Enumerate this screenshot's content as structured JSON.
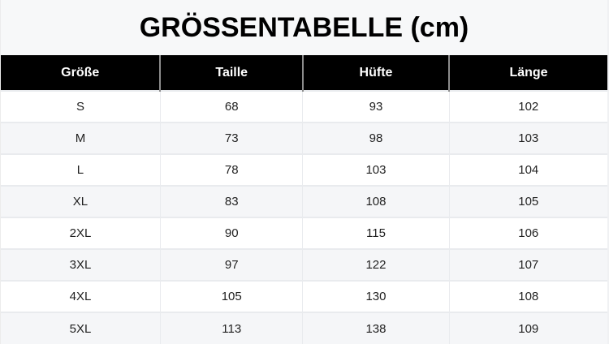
{
  "title": "GRÖSSENTABELLE (cm)",
  "table": {
    "headers": [
      "Größe",
      "Taille",
      "Hüfte",
      "Länge"
    ],
    "rows": [
      [
        "S",
        "68",
        "93",
        "102"
      ],
      [
        "M",
        "73",
        "98",
        "103"
      ],
      [
        "L",
        "78",
        "103",
        "104"
      ],
      [
        "XL",
        "83",
        "108",
        "105"
      ],
      [
        "2XL",
        "90",
        "115",
        "106"
      ],
      [
        "3XL",
        "97",
        "122",
        "107"
      ],
      [
        "4XL",
        "105",
        "130",
        "108"
      ],
      [
        "5XL",
        "113",
        "138",
        "109"
      ]
    ]
  },
  "colors": {
    "header_bg": "#000000",
    "header_text": "#ffffff",
    "header_divider": "#8c8c8c",
    "title_band_bg": "#f7f8f9",
    "row_bg": "#ffffff",
    "row_alt_bg": "#f5f6f8",
    "border": "#e9ebee",
    "cell_text": "#1f1f1f"
  },
  "chart_data": {
    "type": "table",
    "title": "GRÖSSENTABELLE (cm)",
    "unit": "cm",
    "columns": [
      "Größe",
      "Taille",
      "Hüfte",
      "Länge"
    ],
    "rows": [
      [
        "S",
        68,
        93,
        102
      ],
      [
        "M",
        73,
        98,
        103
      ],
      [
        "L",
        78,
        103,
        104
      ],
      [
        "XL",
        83,
        108,
        105
      ],
      [
        "2XL",
        90,
        115,
        106
      ],
      [
        "3XL",
        97,
        122,
        107
      ],
      [
        "4XL",
        105,
        130,
        108
      ],
      [
        "5XL",
        113,
        138,
        109
      ]
    ]
  }
}
